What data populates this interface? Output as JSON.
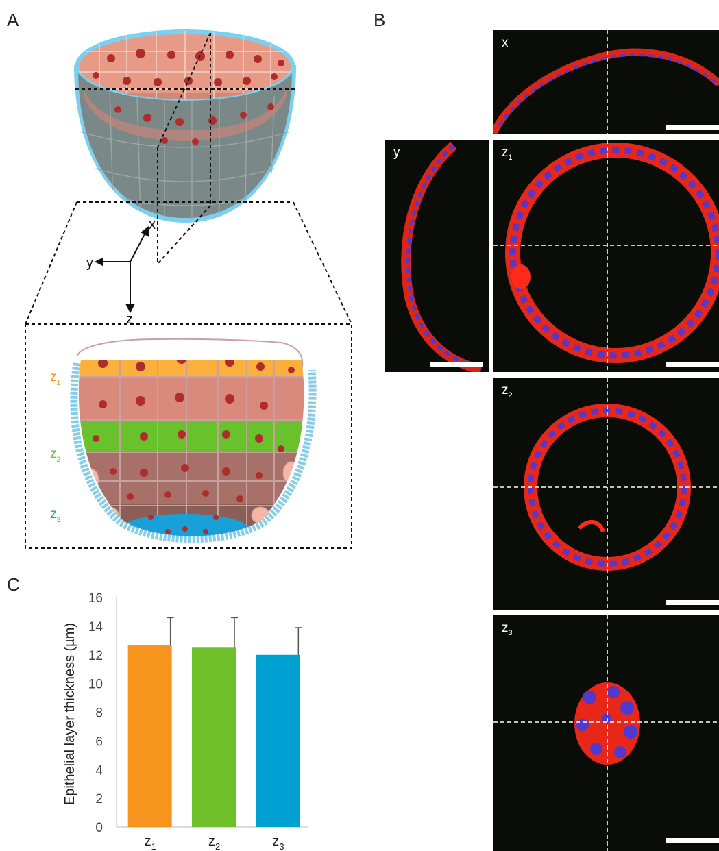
{
  "panels": {
    "a": "A",
    "b": "B",
    "c": "C"
  },
  "axes3d": {
    "x": "x",
    "y": "y",
    "z": "z"
  },
  "zones": [
    {
      "base": "z",
      "sub": "1",
      "color": "#f7941d"
    },
    {
      "base": "z",
      "sub": "2",
      "color": "#6fbf2a"
    },
    {
      "base": "z",
      "sub": "3",
      "color": "#1aa0d8"
    }
  ],
  "micrographs": [
    {
      "base": "x",
      "sub": ""
    },
    {
      "base": "y",
      "sub": ""
    },
    {
      "base": "z",
      "sub": "1"
    },
    {
      "base": "z",
      "sub": "2"
    },
    {
      "base": "z",
      "sub": "3"
    }
  ],
  "colors": {
    "membrane": "#ff2a1a",
    "nuclei": "#4a3ad8",
    "shell": "#7ccfee"
  },
  "chart_data": {
    "type": "bar",
    "categories": [
      "z1",
      "z2",
      "z3"
    ],
    "category_labels": [
      {
        "base": "z",
        "sub": "1"
      },
      {
        "base": "z",
        "sub": "2"
      },
      {
        "base": "z",
        "sub": "3"
      }
    ],
    "values": [
      12.7,
      12.5,
      12.0
    ],
    "errors": [
      1.9,
      2.1,
      1.9
    ],
    "bar_colors": [
      "#f7941d",
      "#6fbf2a",
      "#00a0d2"
    ],
    "ylabel": "Epithelial layer thickness (µm)",
    "xlabel": "",
    "ylim": [
      0,
      16
    ],
    "yticks": [
      "0",
      "2",
      "4",
      "6",
      "8",
      "10",
      "12",
      "14",
      "16"
    ],
    "grid": false,
    "legend": "none"
  }
}
